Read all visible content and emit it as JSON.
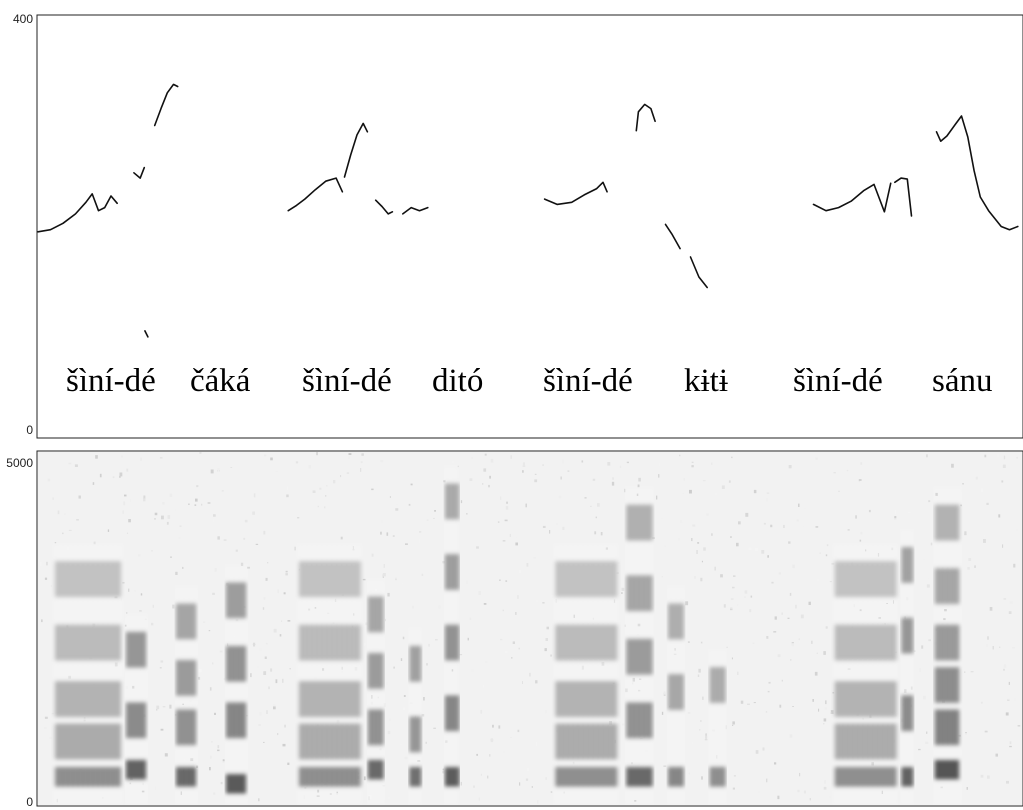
{
  "chart_data": [
    {
      "type": "line",
      "panel": "pitch-track",
      "ylim": [
        0,
        400
      ],
      "y_ticks": [
        "400",
        "0"
      ],
      "grid": false,
      "segments": [
        {
          "x": [
            0.0,
            0.06,
            0.12,
            0.18,
            0.23,
            0.26,
            0.29,
            0.32,
            0.35,
            0.38
          ],
          "y": [
            195,
            197,
            203,
            212,
            223,
            231,
            215,
            218,
            229,
            222
          ]
        },
        {
          "x": [
            0.46,
            0.49,
            0.51
          ],
          "y": [
            251,
            246,
            256
          ]
        },
        {
          "x": [
            0.56,
            0.59,
            0.62,
            0.65,
            0.67
          ],
          "y": [
            296,
            312,
            327,
            335,
            333
          ]
        },
        {
          "x": [
            0.52
          ],
          "y": [
            98
          ]
        },
        {
          "x": [
            1.2,
            1.24,
            1.28,
            1.33,
            1.38,
            1.43,
            1.46
          ],
          "y": [
            215,
            220,
            226,
            235,
            243,
            246,
            233
          ]
        },
        {
          "x": [
            1.47,
            1.5,
            1.53,
            1.56,
            1.58
          ],
          "y": [
            247,
            268,
            287,
            298,
            290
          ]
        },
        {
          "x": [
            1.62,
            1.65,
            1.68,
            1.7
          ],
          "y": [
            225,
            219,
            212,
            214
          ]
        },
        {
          "x": [
            1.75,
            1.79,
            1.83,
            1.87
          ],
          "y": [
            212,
            218,
            215,
            218
          ]
        },
        {
          "x": [
            2.43,
            2.49,
            2.56,
            2.62,
            2.68,
            2.71,
            2.73
          ],
          "y": [
            226,
            221,
            223,
            230,
            236,
            242,
            233
          ]
        },
        {
          "x": [
            2.87,
            2.88,
            2.91,
            2.94,
            2.96
          ],
          "y": [
            291,
            309,
            316,
            312,
            300
          ]
        },
        {
          "x": [
            3.01,
            3.04,
            3.08
          ],
          "y": [
            202,
            193,
            179
          ]
        },
        {
          "x": [
            3.13,
            3.17,
            3.21
          ],
          "y": [
            171,
            152,
            142
          ]
        },
        {
          "x": [
            3.72,
            3.78,
            3.84,
            3.9,
            3.96,
            4.01,
            4.06,
            4.09
          ],
          "y": [
            221,
            215,
            218,
            224,
            234,
            240,
            214,
            241
          ]
        },
        {
          "x": [
            4.11,
            4.14,
            4.17,
            4.19
          ],
          "y": [
            242,
            246,
            245,
            210
          ]
        },
        {
          "x": [
            4.31,
            4.33,
            4.36,
            4.4,
            4.43,
            4.46,
            4.49,
            4.52,
            4.56,
            4.62,
            4.66,
            4.7
          ],
          "y": [
            290,
            281,
            286,
            297,
            305,
            285,
            253,
            228,
            215,
            200,
            197,
            200
          ]
        }
      ],
      "words": [
        "šìní-dé",
        "čáká",
        "šìní-dé",
        "ditó",
        "šìní-dé",
        "kɨtɨ",
        "šìní-dé",
        "sánu"
      ]
    },
    {
      "type": "heatmap",
      "panel": "spectrogram",
      "ylim": [
        0,
        5000
      ],
      "y_ticks": [
        "5000",
        "0"
      ],
      "colormap": "grayscale",
      "columns": [
        {
          "x0": 0.08,
          "x1": 0.4,
          "formants": [
            400,
            900,
            1500,
            2300,
            3200
          ],
          "strength": 0.55
        },
        {
          "x0": 0.42,
          "x1": 0.52,
          "formants": [
            500,
            1200,
            2200
          ],
          "strength": 0.85
        },
        {
          "x0": 0.66,
          "x1": 0.76,
          "formants": [
            400,
            1100,
            1800,
            2600
          ],
          "strength": 0.8
        },
        {
          "x0": 0.9,
          "x1": 1.0,
          "formants": [
            300,
            1200,
            2000,
            2900
          ],
          "strength": 0.9
        },
        {
          "x0": 1.25,
          "x1": 1.55,
          "formants": [
            400,
            900,
            1500,
            2300,
            3200
          ],
          "strength": 0.55
        },
        {
          "x0": 1.58,
          "x1": 1.66,
          "formants": [
            500,
            1100,
            1900,
            2700
          ],
          "strength": 0.8
        },
        {
          "x0": 1.78,
          "x1": 1.84,
          "formants": [
            400,
            1000,
            2000
          ],
          "strength": 0.75
        },
        {
          "x0": 1.95,
          "x1": 2.02,
          "formants": [
            400,
            1300,
            2300,
            3300,
            4300
          ],
          "strength": 0.9
        },
        {
          "x0": 2.48,
          "x1": 2.78,
          "formants": [
            400,
            900,
            1500,
            2300,
            3200
          ],
          "strength": 0.55
        },
        {
          "x0": 2.82,
          "x1": 2.95,
          "formants": [
            400,
            1200,
            2100,
            3000,
            4000
          ],
          "strength": 0.8
        },
        {
          "x0": 3.02,
          "x1": 3.1,
          "formants": [
            400,
            1600,
            2600
          ],
          "strength": 0.6
        },
        {
          "x0": 3.22,
          "x1": 3.3,
          "formants": [
            400,
            1700
          ],
          "strength": 0.55
        },
        {
          "x0": 3.82,
          "x1": 4.12,
          "formants": [
            400,
            900,
            1500,
            2300,
            3200
          ],
          "strength": 0.55
        },
        {
          "x0": 4.14,
          "x1": 4.2,
          "formants": [
            400,
            1300,
            2400,
            3400
          ],
          "strength": 0.85
        },
        {
          "x0": 4.3,
          "x1": 4.42,
          "formants": [
            500,
            1100,
            1700,
            2300,
            3100,
            4000
          ],
          "strength": 0.95
        }
      ]
    }
  ]
}
